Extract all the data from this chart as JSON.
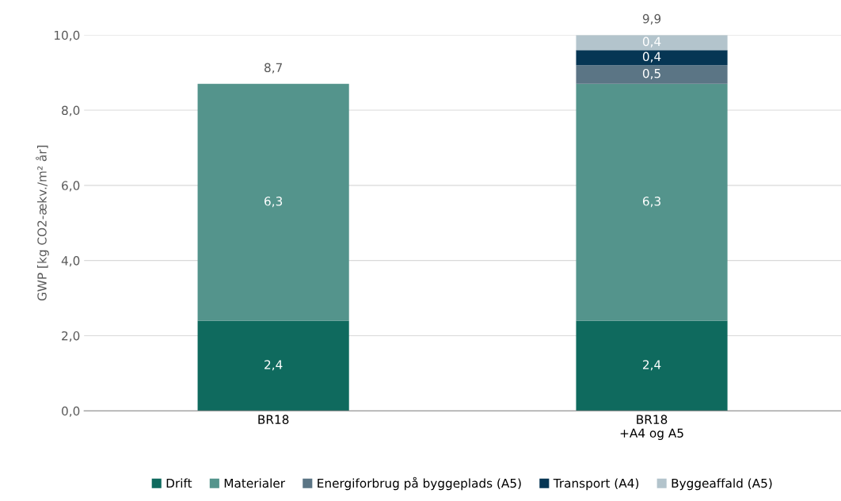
{
  "chart_data": {
    "type": "bar",
    "stacked": true,
    "ylabel": "GWP [kg CO2-ækv./m² år]",
    "categories": [
      "BR18",
      "BR18\n+A4 og A5"
    ],
    "series": [
      {
        "name": "Drift",
        "color": "#0f6a5e",
        "values": [
          2.4,
          2.4
        ],
        "value_labels": [
          "2,4",
          "2,4"
        ]
      },
      {
        "name": "Materialer",
        "color": "#54948c",
        "values": [
          6.3,
          6.3
        ],
        "value_labels": [
          "6,3",
          "6,3"
        ]
      },
      {
        "name": "Energiforbrug på byggeplads (A5)",
        "color": "#5b7585",
        "values": [
          null,
          0.5
        ],
        "value_labels": [
          null,
          "0,5"
        ]
      },
      {
        "name": "Transport (A4)",
        "color": "#063654",
        "values": [
          null,
          0.4
        ],
        "value_labels": [
          null,
          "0,4"
        ]
      },
      {
        "name": "Byggeaffald (A5)",
        "color": "#b3c4cc",
        "values": [
          null,
          0.4
        ],
        "value_labels": [
          null,
          "0,4"
        ]
      }
    ],
    "totals": [
      "8,7",
      "9,9"
    ],
    "ylim": [
      0,
      10
    ],
    "yticks": [
      {
        "value": 0,
        "label": "0,0"
      },
      {
        "value": 2,
        "label": "2,0"
      },
      {
        "value": 4,
        "label": "4,0"
      },
      {
        "value": 6,
        "label": "6,0"
      },
      {
        "value": 8,
        "label": "8,0"
      },
      {
        "value": 10,
        "label": "10,0"
      }
    ],
    "grid": "y",
    "legend": "bottom"
  }
}
